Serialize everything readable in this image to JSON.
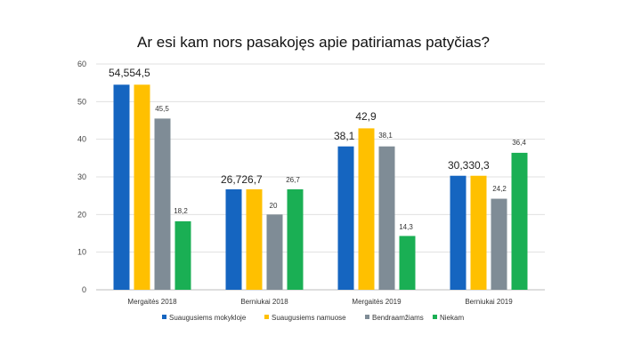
{
  "chart_data": {
    "type": "bar",
    "title": "Ar esi kam nors pasakojęs apie patiriamas patyčias?",
    "categories": [
      "Mergaitės 2018",
      "Berniukai 2018",
      "Mergaitės 2019",
      "Berniukai 2019"
    ],
    "series": [
      {
        "name": "Suaugusiems mokykloje",
        "color": "#1565c0",
        "values": [
          54.5,
          26.7,
          38.1,
          30.3
        ]
      },
      {
        "name": "Suaugusiems namuose",
        "color": "#ffc000",
        "values": [
          54.5,
          26.7,
          42.9,
          30.3
        ]
      },
      {
        "name": "Bendraamžiams",
        "color": "#7f8c96",
        "values": [
          45.5,
          20,
          38.1,
          24.2
        ]
      },
      {
        "name": "Niekam",
        "color": "#1aaf54",
        "values": [
          18.2,
          26.7,
          14.3,
          36.4
        ]
      }
    ],
    "ylim": [
      0,
      60
    ],
    "yticks": [
      "0",
      "10",
      "20",
      "30",
      "40",
      "50",
      "60"
    ],
    "data_labels": [
      {
        "text": "54,554,5",
        "group": 0,
        "style": "big"
      },
      {
        "text": "45,5",
        "group": 0,
        "style": "small"
      },
      {
        "text": "18,2",
        "group": 0,
        "style": "small"
      },
      {
        "text": "26,726,7",
        "group": 1,
        "style": "big"
      },
      {
        "text": "20",
        "group": 1,
        "style": "small"
      },
      {
        "text": "26,7",
        "group": 1,
        "style": "small"
      },
      {
        "text": "38,1",
        "group": 2,
        "style": "big"
      },
      {
        "text": "42,9",
        "group": 2,
        "style": "big"
      },
      {
        "text": "38,1",
        "group": 2,
        "style": "small"
      },
      {
        "text": "14,3",
        "group": 2,
        "style": "small"
      },
      {
        "text": "30,330,3",
        "group": 3,
        "style": "big"
      },
      {
        "text": "24,2",
        "group": 3,
        "style": "small"
      },
      {
        "text": "36,4",
        "group": 3,
        "style": "small"
      }
    ],
    "legend": [
      "Suaugusiems mokykloje",
      "Suaugusiems namuose",
      "Bendraamžiams",
      "Niekam"
    ],
    "legend_position": "bottom",
    "grid": true
  }
}
